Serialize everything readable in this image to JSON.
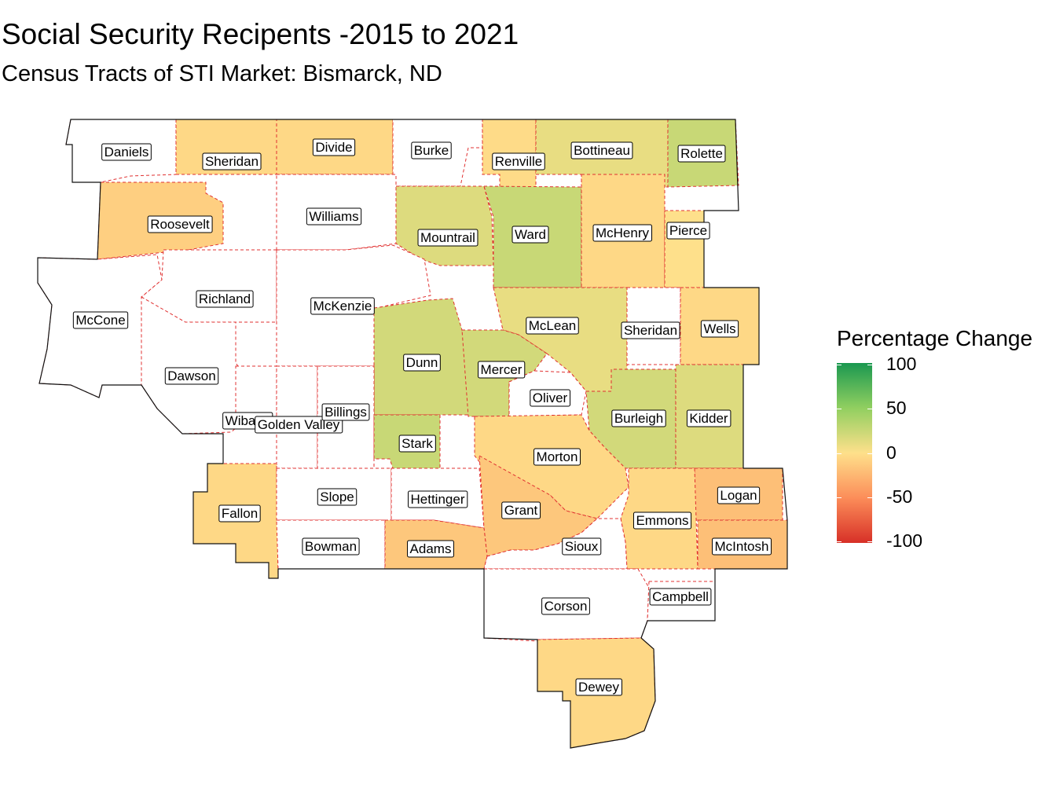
{
  "title": "Social Security Recipents -2015 to 2021",
  "subtitle": "Census Tracts of STI Market: Bismarck, ND",
  "legend": {
    "title": "Percentage Change",
    "ticks": [
      "100",
      "50",
      "0",
      "-50",
      "-100"
    ],
    "scale_min": -100,
    "scale_max": 100,
    "colors": {
      "high": "#1a9850",
      "mid_high": "#91cf60",
      "mid": "#fee08b",
      "mid_low": "#fc8d59",
      "low": "#d73027"
    }
  },
  "counties": [
    {
      "name": "Daniels",
      "change": null
    },
    {
      "name": "Sheridan",
      "change": -5
    },
    {
      "name": "Divide",
      "change": -5
    },
    {
      "name": "Burke",
      "change": null
    },
    {
      "name": "Renville",
      "change": -3
    },
    {
      "name": "Bottineau",
      "change": 10
    },
    {
      "name": "Rolette",
      "change": 25
    },
    {
      "name": "Roosevelt",
      "change": -10
    },
    {
      "name": "Williams",
      "change": null
    },
    {
      "name": "Mountrail",
      "change": 15
    },
    {
      "name": "Ward",
      "change": 25
    },
    {
      "name": "McHenry",
      "change": -5
    },
    {
      "name": "Pierce",
      "change": 0
    },
    {
      "name": "Richland",
      "change": null
    },
    {
      "name": "McKenzie",
      "change": null
    },
    {
      "name": "McCone",
      "change": null
    },
    {
      "name": "Dawson",
      "change": null
    },
    {
      "name": "McLean",
      "change": 10
    },
    {
      "name": "Sheridan",
      "change": null
    },
    {
      "name": "Wells",
      "change": -5
    },
    {
      "name": "Dunn",
      "change": 20
    },
    {
      "name": "Mercer",
      "change": 20
    },
    {
      "name": "Oliver",
      "change": null
    },
    {
      "name": "Wibaux",
      "change": null
    },
    {
      "name": "Golden Valley",
      "change": null
    },
    {
      "name": "Billings",
      "change": null
    },
    {
      "name": "Burleigh",
      "change": 20
    },
    {
      "name": "Kidder",
      "change": 15
    },
    {
      "name": "Stark",
      "change": 25
    },
    {
      "name": "Morton",
      "change": -5
    },
    {
      "name": "Fallon",
      "change": -5
    },
    {
      "name": "Slope",
      "change": null
    },
    {
      "name": "Hettinger",
      "change": null
    },
    {
      "name": "Grant",
      "change": -15
    },
    {
      "name": "Logan",
      "change": -20
    },
    {
      "name": "Emmons",
      "change": -5
    },
    {
      "name": "Bowman",
      "change": null
    },
    {
      "name": "Adams",
      "change": -15
    },
    {
      "name": "Sioux",
      "change": null
    },
    {
      "name": "McIntosh",
      "change": -20
    },
    {
      "name": "Corson",
      "change": null
    },
    {
      "name": "Campbell",
      "change": null
    },
    {
      "name": "Dewey",
      "change": -5
    }
  ]
}
